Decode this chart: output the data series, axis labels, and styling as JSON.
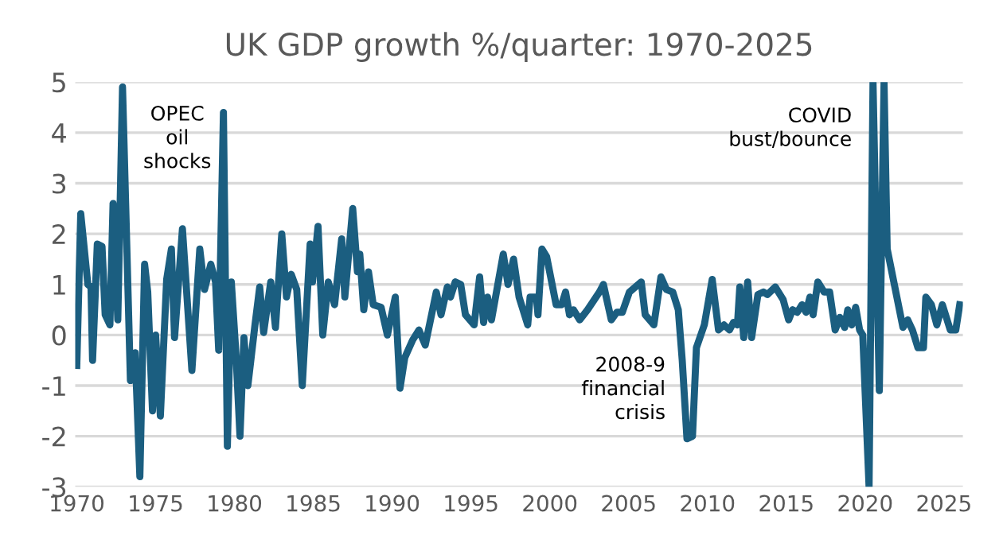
{
  "chart_data": {
    "type": "line",
    "title": "UK GDP growth %/quarter: 1970-2025",
    "x": [
      1970.0,
      1970.25,
      1970.7,
      1970.9,
      1971.0,
      1971.3,
      1971.6,
      1971.8,
      1972.1,
      1972.3,
      1972.6,
      1972.9,
      1973.4,
      1973.7,
      1974.0,
      1974.3,
      1974.5,
      1974.8,
      1975.0,
      1975.3,
      1975.7,
      1976.0,
      1976.2,
      1976.7,
      1977.3,
      1977.8,
      1978.1,
      1978.5,
      1978.8,
      1979.0,
      1979.3,
      1979.55,
      1979.8,
      1980.1,
      1980.35,
      1980.6,
      1980.85,
      1981.3,
      1981.6,
      1981.85,
      1982.3,
      1982.6,
      1983.0,
      1983.3,
      1983.6,
      1983.95,
      1984.3,
      1984.8,
      1984.95,
      1985.3,
      1985.6,
      1985.95,
      1986.35,
      1986.8,
      1987.0,
      1987.5,
      1987.8,
      1987.95,
      1988.2,
      1988.5,
      1988.8,
      1989.3,
      1989.7,
      1990.2,
      1990.5,
      1990.8,
      1991.3,
      1991.7,
      1992.1,
      1992.8,
      1993.1,
      1993.5,
      1993.7,
      1994.0,
      1994.35,
      1994.65,
      1995.2,
      1995.55,
      1995.8,
      1996.05,
      1996.3,
      1997.05,
      1997.35,
      1997.7,
      1998.05,
      1998.6,
      1998.75,
      1999.15,
      1999.25,
      1999.5,
      1999.8,
      2000.4,
      2000.75,
      2001.0,
      2001.25,
      2001.5,
      2001.9,
      2002.4,
      2003.15,
      2003.4,
      2003.9,
      2004.25,
      2004.6,
      2005.05,
      2005.8,
      2006.05,
      2006.6,
      2007.05,
      2007.4,
      2007.8,
      2008.15,
      2008.4,
      2008.7,
      2009.05,
      2009.3,
      2009.8,
      2010.3,
      2010.7,
      2011.05,
      2011.4,
      2011.65,
      2011.9,
      2012.05,
      2012.3,
      2012.55,
      2012.8,
      2013.2,
      2013.55,
      2013.8,
      2014.3,
      2014.8,
      2015.15,
      2015.4,
      2015.7,
      2016.0,
      2016.25,
      2016.5,
      2016.7,
      2017.0,
      2017.4,
      2017.75,
      2018.1,
      2018.4,
      2018.7,
      2018.9,
      2019.15,
      2019.4,
      2019.65,
      2019.85,
      2020.25,
      2020.5,
      2020.9,
      2021.2,
      2021.4,
      2022.4,
      2022.7,
      2023.0,
      2023.35,
      2023.7,
      2023.85,
      2024.2,
      2024.55,
      2024.9,
      2025.4,
      2025.75,
      2026.0
    ],
    "series": [
      {
        "color": "#1b5e80",
        "values": [
          -0.6,
          2.4,
          1.0,
          0.95,
          -0.5,
          1.8,
          1.75,
          0.4,
          0.2,
          2.6,
          0.3,
          4.9,
          -0.9,
          -0.35,
          -2.8,
          1.4,
          0.85,
          -1.5,
          0.0,
          -1.6,
          1.1,
          1.7,
          -0.05,
          2.1,
          -0.7,
          1.7,
          0.9,
          1.4,
          1.05,
          -0.3,
          4.4,
          -2.2,
          1.05,
          -0.4,
          -2.0,
          -0.05,
          -1.0,
          0.2,
          0.95,
          0.05,
          1.05,
          0.15,
          2.0,
          0.75,
          1.2,
          0.9,
          -1.0,
          1.8,
          1.05,
          2.15,
          0.0,
          1.05,
          0.6,
          1.9,
          0.75,
          2.5,
          1.25,
          1.6,
          0.5,
          1.25,
          0.6,
          0.55,
          0.0,
          0.75,
          -1.05,
          -0.45,
          -0.1,
          0.1,
          -0.2,
          0.85,
          0.4,
          0.95,
          0.75,
          1.05,
          1.0,
          0.4,
          0.2,
          1.15,
          0.25,
          0.75,
          0.3,
          1.6,
          1.0,
          1.5,
          0.75,
          0.2,
          0.75,
          0.75,
          0.4,
          1.7,
          1.55,
          0.6,
          0.6,
          0.85,
          0.4,
          0.5,
          0.3,
          0.5,
          0.85,
          1.0,
          0.3,
          0.45,
          0.45,
          0.85,
          1.05,
          0.4,
          0.2,
          1.15,
          0.9,
          0.85,
          0.5,
          -0.5,
          -2.05,
          -2.0,
          -0.25,
          0.2,
          1.1,
          0.1,
          0.2,
          0.1,
          0.25,
          0.2,
          0.95,
          -0.05,
          1.05,
          -0.05,
          0.8,
          0.85,
          0.8,
          0.95,
          0.7,
          0.3,
          0.5,
          0.45,
          0.6,
          0.45,
          0.75,
          0.4,
          1.05,
          0.85,
          0.85,
          0.1,
          0.35,
          0.15,
          0.5,
          0.2,
          0.55,
          0.1,
          0.0,
          -3.0,
          5.0,
          -1.1,
          5.0,
          1.7,
          0.15,
          0.3,
          0.1,
          -0.25,
          -0.25,
          0.75,
          0.6,
          0.2,
          0.6,
          0.1,
          0.1,
          0.6
        ]
      }
    ],
    "xlim": [
      1969.9,
      2026.2
    ],
    "xticks": [
      1970,
      1975,
      1980,
      1985,
      1990,
      1995,
      2000,
      2005,
      2010,
      2015,
      2020,
      2025
    ],
    "ylim": [
      -3,
      5
    ],
    "yticks": [
      -3,
      -2,
      -1,
      0,
      1,
      2,
      3,
      4,
      5
    ],
    "grid": "y",
    "legend": false,
    "annotations": [
      "OPEC\noil\nshocks",
      "2008-9\nfinancial\ncrisis",
      "COVID\nbust/bounce"
    ]
  }
}
